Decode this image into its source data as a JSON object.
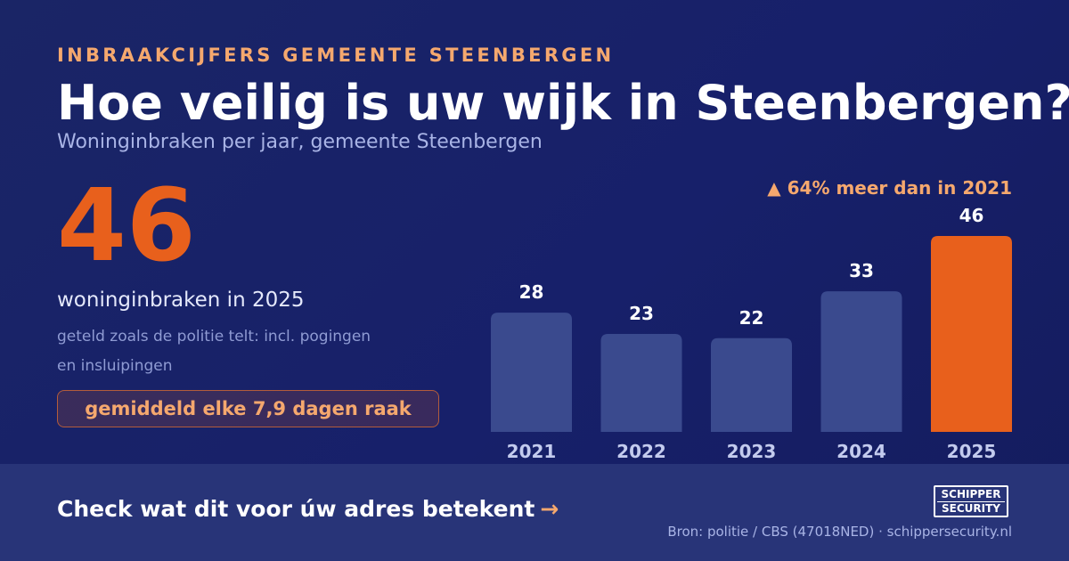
{
  "eyebrow": "INBRAAKCIJFERS GEMEENTE STEENBERGEN",
  "title": "Hoe veilig is uw wijk in Steenbergen?",
  "subtitle": "Woninginbraken per jaar, gemeente Steenbergen",
  "highlight": {
    "number": "46",
    "label": "woninginbraken in 2025",
    "note": "geteld zoals de politie telt: incl. pogingen en insluipingen",
    "frequency": "gemiddeld elke 7,9 dagen raak"
  },
  "change_note": "▲ 64% meer dan in 2021",
  "chart_data": {
    "type": "bar",
    "categories": [
      "2021",
      "2022",
      "2023",
      "2024",
      "2025"
    ],
    "values": [
      28,
      23,
      22,
      33,
      46
    ],
    "data_labels": [
      "28",
      "23",
      "22",
      "33",
      "46"
    ],
    "highlight_index": 4,
    "ylim": [
      0,
      46
    ],
    "grid": false,
    "colors": {
      "bar": "#3a4a8e",
      "highlight_bar": "#e8601c",
      "label": "#ffffff",
      "tick": "#c3cbee"
    }
  },
  "footer": {
    "cta": "Check wat dit voor úw adres betekent",
    "cta_arrow": "→",
    "logo_line1": "SCHIPPER",
    "logo_line2": "SECURITY",
    "source": "Bron: politie / CBS (47018NED) · schippersecurity.nl"
  },
  "colors": {
    "background": "#17206a",
    "accent": "#e8601c",
    "accent_soft": "#f5a86e",
    "footer": "#283478"
  }
}
